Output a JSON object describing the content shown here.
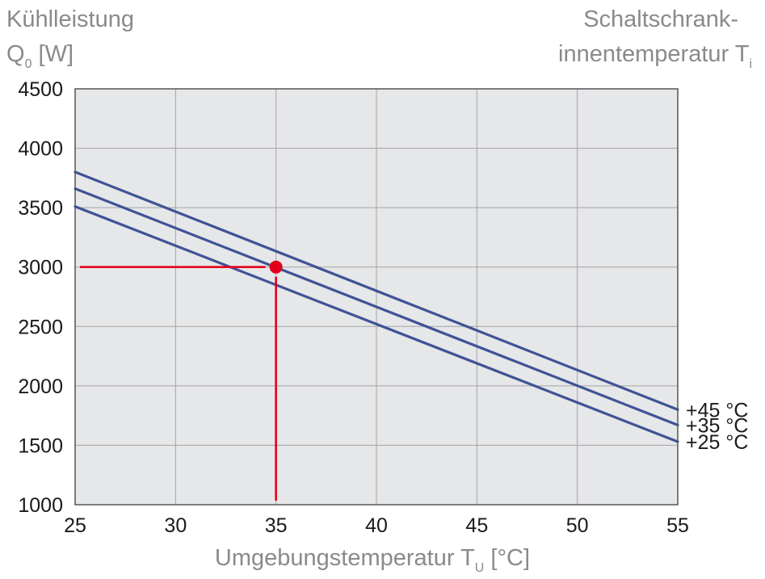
{
  "chart_data": {
    "type": "line",
    "title": "",
    "ylabel_line1": "Kühlleistung",
    "ylabel_line2_main": "Q",
    "ylabel_line2_sub": "0",
    "ylabel_line2_unit": " [W]",
    "legend_title_line1": "Schaltschrank-",
    "legend_title_line2_main": "innentemperatur T",
    "legend_title_line2_sub": "i",
    "xlabel_main": "Umgebungstemperatur T",
    "xlabel_sub": "U",
    "xlabel_unit": " [°C]",
    "xlim": [
      25,
      55
    ],
    "ylim": [
      1000,
      4500
    ],
    "xticks": [
      25,
      30,
      35,
      40,
      45,
      50,
      55
    ],
    "yticks": [
      1000,
      1500,
      2000,
      2500,
      3000,
      3500,
      4000,
      4500
    ],
    "grid": true,
    "series": [
      {
        "name": "+45 °C",
        "x": [
          25,
          55
        ],
        "y": [
          3800,
          1800
        ]
      },
      {
        "name": "+35 °C",
        "x": [
          25,
          55
        ],
        "y": [
          3660,
          1670
        ]
      },
      {
        "name": "+25 °C",
        "x": [
          25,
          55
        ],
        "y": [
          3510,
          1530
        ]
      }
    ],
    "marker": {
      "x": 35,
      "y": 3000
    },
    "colors": {
      "line": "#3f5395",
      "marker": "#e3001b",
      "plot_bg": "#e6e7e9",
      "grid": "#a4a4a4",
      "axis": "#555555"
    }
  }
}
